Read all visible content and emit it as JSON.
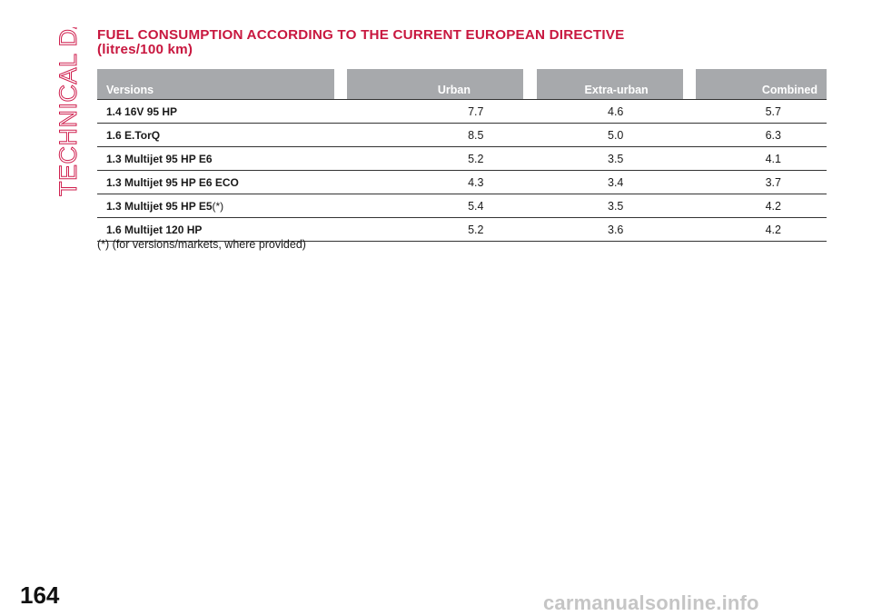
{
  "side_label": "TECHNICAL DATA",
  "title": {
    "line1": "FUEL CONSUMPTION ACCORDING TO THE CURRENT EUROPEAN DIRECTIVE",
    "line2": "(litres/100 km)"
  },
  "table": {
    "headers": [
      "Versions",
      "Urban",
      "Extra-urban",
      "Combined"
    ],
    "rows": [
      {
        "version": "1.4 16V 95 HP",
        "note": "",
        "urban": "7.7",
        "extra_urban": "4.6",
        "combined": "5.7"
      },
      {
        "version": "1.6 E.TorQ",
        "note": "",
        "urban": "8.5",
        "extra_urban": "5.0",
        "combined": "6.3"
      },
      {
        "version": "1.3 Multijet 95 HP E6",
        "note": "",
        "urban": "5.2",
        "extra_urban": "3.5",
        "combined": "4.1"
      },
      {
        "version": "1.3 Multijet 95 HP E6 ECO",
        "note": "",
        "urban": "4.3",
        "extra_urban": "3.4",
        "combined": "3.7"
      },
      {
        "version": "1.3 Multijet 95 HP E5",
        "note": "(*)",
        "urban": "5.4",
        "extra_urban": "3.5",
        "combined": "4.2"
      },
      {
        "version": "1.6 Multijet 120 HP",
        "note": "",
        "urban": "5.2",
        "extra_urban": "3.6",
        "combined": "4.2"
      }
    ]
  },
  "footnote": "(*) (for versions/markets, where provided)",
  "page_number": "164",
  "watermark": "carmanualsonline.info",
  "colors": {
    "accent": "#c8173f",
    "header_bg": "#a7a9ac",
    "rule": "#333333"
  }
}
